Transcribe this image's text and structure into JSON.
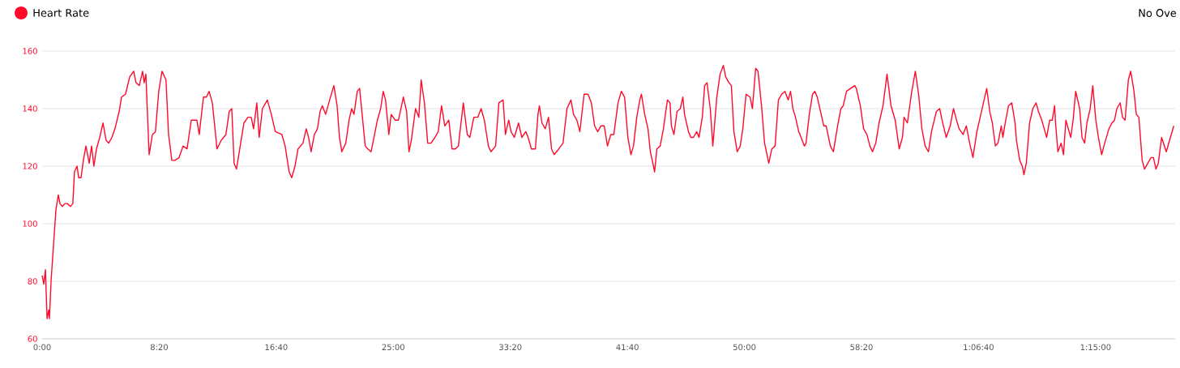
{
  "chart_data": {
    "type": "line",
    "legend": "top left",
    "grid": "y",
    "xlim": [
      0,
      4840
    ],
    "ylim": [
      60,
      160
    ],
    "xticks": [
      {
        "value": 0,
        "label": "0:00"
      },
      {
        "value": 500,
        "label": "8:20"
      },
      {
        "value": 1000,
        "label": "16:40"
      },
      {
        "value": 1500,
        "label": "25:00"
      },
      {
        "value": 2000,
        "label": "33:20"
      },
      {
        "value": 2500,
        "label": "41:40"
      },
      {
        "value": 3000,
        "label": "50:00"
      },
      {
        "value": 3500,
        "label": "58:20"
      },
      {
        "value": 4000,
        "label": "1:06:40"
      },
      {
        "value": 4500,
        "label": "1:15:00"
      }
    ],
    "yticks": [
      60,
      80,
      100,
      120,
      140,
      160
    ],
    "annotations": [
      "No Ove"
    ],
    "series": [
      {
        "name": "Heart Rate",
        "color": "#ff0a2a",
        "x": [
          0,
          7,
          14,
          21,
          28,
          31,
          38,
          48,
          59,
          69,
          76,
          86,
          97,
          107,
          121,
          131,
          138,
          149,
          156,
          166,
          176,
          187,
          201,
          211,
          221,
          232,
          246,
          260,
          273,
          284,
          298,
          311,
          329,
          339,
          356,
          374,
          391,
          401,
          415,
          429,
          436,
          443,
          457,
          471,
          484,
          498,
          512,
          529,
          540,
          554,
          567,
          585,
          602,
          619,
          637,
          661,
          671,
          689,
          702,
          713,
          727,
          747,
          765,
          785,
          799,
          810,
          820,
          830,
          844,
          862,
          879,
          893,
          903,
          917,
          927,
          941,
          962,
          979,
          996,
          1024,
          1038,
          1055,
          1066,
          1080,
          1093,
          1114,
          1128,
          1138,
          1149,
          1163,
          1176,
          1187,
          1197,
          1211,
          1228,
          1246,
          1260,
          1270,
          1280,
          1297,
          1311,
          1322,
          1332,
          1346,
          1356,
          1367,
          1380,
          1391,
          1405,
          1415,
          1432,
          1446,
          1457,
          1467,
          1481,
          1491,
          1508,
          1522,
          1543,
          1557,
          1567,
          1577,
          1595,
          1609,
          1619,
          1633,
          1647,
          1661,
          1678,
          1692,
          1706,
          1720,
          1737,
          1751,
          1765,
          1778,
          1799,
          1816,
          1827,
          1844,
          1861,
          1875,
          1889,
          1906,
          1917,
          1937,
          1951,
          1969,
          1979,
          1993,
          2003,
          2017,
          2035,
          2049,
          2066,
          2076,
          2090,
          2107,
          2118,
          2124,
          2135,
          2149,
          2163,
          2176,
          2187,
          2207,
          2225,
          2242,
          2259,
          2270,
          2284,
          2297,
          2315,
          2332,
          2346,
          2360,
          2373,
          2387,
          2401,
          2415,
          2429,
          2442,
          2460,
          2474,
          2488,
          2502,
          2515,
          2526,
          2540,
          2553,
          2560,
          2574,
          2588,
          2598,
          2609,
          2616,
          2626,
          2640,
          2654,
          2664,
          2671,
          2682,
          2688,
          2699,
          2712,
          2726,
          2737,
          2744,
          2761,
          2771,
          2782,
          2796,
          2806,
          2820,
          2830,
          2840,
          2854,
          2865,
          2882,
          2896,
          2910,
          2920,
          2934,
          2944,
          2955,
          2969,
          2982,
          2993,
          3007,
          3024,
          3034,
          3048,
          3058,
          3073,
          3086,
          3104,
          3117,
          3131,
          3145,
          3159,
          3173,
          3187,
          3197,
          3207,
          3218,
          3232,
          3242,
          3256,
          3263,
          3277,
          3291,
          3301,
          3311,
          3325,
          3339,
          3349,
          3367,
          3380,
          3398,
          3412,
          3422,
          3436,
          3453,
          3471,
          3478,
          3495,
          3509,
          3523,
          3536,
          3547,
          3561,
          3575,
          3592,
          3609,
          3626,
          3644,
          3661,
          3675,
          3682,
          3696,
          3713,
          3730,
          3744,
          3758,
          3772,
          3786,
          3799,
          3820,
          3834,
          3844,
          3862,
          3879,
          3893,
          3906,
          3917,
          3934,
          3948,
          3962,
          3976,
          3993,
          4007,
          4021,
          4035,
          4048,
          4059,
          4072,
          4083,
          4097,
          4104,
          4114,
          4128,
          4142,
          4156,
          4162,
          4176,
          4187,
          4194,
          4204,
          4218,
          4232,
          4246,
          4256,
          4270,
          4284,
          4291,
          4304,
          4315,
          4325,
          4329,
          4339,
          4353,
          4363,
          4373,
          4394,
          4404,
          4415,
          4432,
          4442,
          4453,
          4463,
          4477,
          4488,
          4501,
          4512,
          4526,
          4539,
          4557,
          4570,
          4581,
          4591,
          4605,
          4615,
          4626,
          4640,
          4650,
          4664,
          4674,
          4685,
          4699,
          4709,
          4723,
          4737,
          4747,
          4758,
          4768,
          4782,
          4802,
          4834
        ],
        "values": [
          82,
          79,
          84,
          67,
          70,
          67,
          80,
          92,
          105,
          110,
          107,
          106,
          107,
          107,
          106,
          107,
          118,
          120,
          116,
          116,
          122,
          127,
          121,
          127,
          120,
          126,
          130,
          135,
          129,
          128,
          130,
          133,
          139,
          144,
          145,
          151,
          153,
          149,
          148,
          153,
          149,
          152,
          124,
          131,
          132,
          146,
          153,
          150,
          131,
          122,
          122,
          123,
          127,
          126,
          136,
          136,
          131,
          144,
          144,
          146,
          142,
          126,
          129,
          131,
          139,
          140,
          121,
          119,
          126,
          135,
          137,
          137,
          133,
          142,
          130,
          140,
          143,
          138,
          132,
          131,
          127,
          118,
          116,
          120,
          126,
          128,
          133,
          130,
          125,
          131,
          133,
          139,
          141,
          138,
          143,
          148,
          141,
          130,
          125,
          128,
          136,
          140,
          138,
          146,
          147,
          138,
          127,
          126,
          125,
          129,
          136,
          140,
          146,
          143,
          131,
          138,
          136,
          136,
          144,
          139,
          125,
          129,
          140,
          137,
          150,
          142,
          128,
          128,
          130,
          132,
          141,
          134,
          136,
          126,
          126,
          127,
          142,
          131,
          130,
          137,
          137,
          140,
          136,
          127,
          125,
          127,
          142,
          143,
          131,
          136,
          132,
          130,
          135,
          130,
          132,
          130,
          126,
          126,
          138,
          141,
          135,
          133,
          137,
          126,
          124,
          126,
          128,
          140,
          143,
          138,
          136,
          132,
          145,
          145,
          142,
          134,
          132,
          134,
          134,
          127,
          131,
          131,
          142,
          146,
          144,
          130,
          124,
          127,
          137,
          143,
          145,
          138,
          133,
          125,
          121,
          118,
          126,
          127,
          133,
          139,
          143,
          142,
          134,
          131,
          139,
          140,
          144,
          138,
          132,
          130,
          130,
          132,
          130,
          137,
          148,
          149,
          140,
          127,
          144,
          152,
          155,
          151,
          149,
          148,
          132,
          125,
          127,
          133,
          145,
          144,
          140,
          154,
          153,
          141,
          128,
          121,
          126,
          127,
          143,
          145,
          146,
          143,
          146,
          140,
          137,
          132,
          130,
          127,
          128,
          138,
          145,
          146,
          144,
          139,
          134,
          134,
          127,
          125,
          134,
          140,
          141,
          146,
          147,
          148,
          147,
          141,
          133,
          131,
          127,
          125,
          128,
          135,
          141,
          152,
          141,
          136,
          126,
          130,
          137,
          135,
          145,
          153,
          145,
          133,
          127,
          125,
          132,
          139,
          140,
          136,
          130,
          134,
          140,
          136,
          133,
          131,
          134,
          128,
          123,
          132,
          137,
          142,
          147,
          139,
          135,
          127,
          128,
          134,
          130,
          135,
          141,
          142,
          135,
          129,
          122,
          120,
          117,
          121,
          135,
          140,
          142,
          139,
          136,
          132,
          130,
          136,
          136,
          141,
          135,
          125,
          128,
          124,
          136,
          130,
          136,
          146,
          140,
          130,
          128,
          135,
          140,
          148,
          136,
          130,
          124,
          128,
          133,
          135,
          136,
          140,
          142,
          137,
          136,
          150,
          153,
          146,
          138,
          137,
          122,
          119,
          121,
          123,
          123,
          119,
          121,
          130,
          125,
          134
        ]
      }
    ]
  }
}
